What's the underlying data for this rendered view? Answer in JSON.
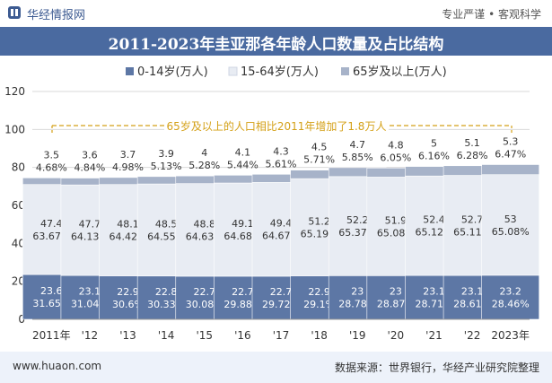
{
  "header": {
    "brand": "华经情报网",
    "tagline": "专业严谨 • 客观科学"
  },
  "footer": {
    "website": "www.huaon.com",
    "source": "数据来源：世界银行，华经产业研究院整理"
  },
  "colors": {
    "s1": "#5d77a5",
    "s2": "#e8ecf3",
    "s3": "#a7b3c9",
    "annotation": "#d4a017",
    "header": "#4a6aa0"
  },
  "chart_data": {
    "type": "bar",
    "stacked": true,
    "title": "2011-2023年圭亚那各年龄人口数量及占比结构",
    "categories": [
      "2011年",
      "'12",
      "'13",
      "'14",
      "'15",
      "'16",
      "'17",
      "'18",
      "'19",
      "'20",
      "'21",
      "'22",
      "2023年"
    ],
    "ylim": [
      0,
      120
    ],
    "yticks": [
      0,
      20,
      40,
      60,
      80,
      100,
      120
    ],
    "legend_position": "top",
    "series": [
      {
        "name": "0-14岁(万人)",
        "values": [
          23.6,
          23.1,
          22.9,
          22.8,
          22.7,
          22.7,
          22.7,
          22.9,
          23,
          23,
          23.1,
          23.1,
          23.2
        ],
        "shares": [
          "31.65%",
          "31.04%",
          "30.6%",
          "30.33%",
          "30.08%",
          "29.88%",
          "29.72%",
          "29.1%",
          "28.78%",
          "28.87%",
          "28.71%",
          "28.61%",
          "28.46%"
        ]
      },
      {
        "name": "15-64岁(万人)",
        "values": [
          47.4,
          47.7,
          48.1,
          48.5,
          48.8,
          49.1,
          49.4,
          51.2,
          52.2,
          51.9,
          52.4,
          52.7,
          53
        ],
        "shares": [
          "63.67%",
          "64.13%",
          "64.42%",
          "64.55%",
          "64.63%",
          "64.68%",
          "64.67%",
          "65.19%",
          "65.37%",
          "65.08%",
          "65.12%",
          "65.11%",
          "65.08%"
        ]
      },
      {
        "name": "65岁及以上(万人)",
        "values": [
          3.5,
          3.6,
          3.7,
          3.9,
          4,
          4.1,
          4.3,
          4.5,
          4.7,
          4.8,
          5,
          5.1,
          5.3
        ],
        "shares": [
          "4.68%",
          "4.84%",
          "4.98%",
          "5.13%",
          "5.28%",
          "5.44%",
          "5.61%",
          "5.71%",
          "5.85%",
          "6.05%",
          "6.16%",
          "6.28%",
          "6.47%"
        ]
      }
    ],
    "annotation": "65岁及以上的人口相比2011年增加了1.8万人"
  }
}
